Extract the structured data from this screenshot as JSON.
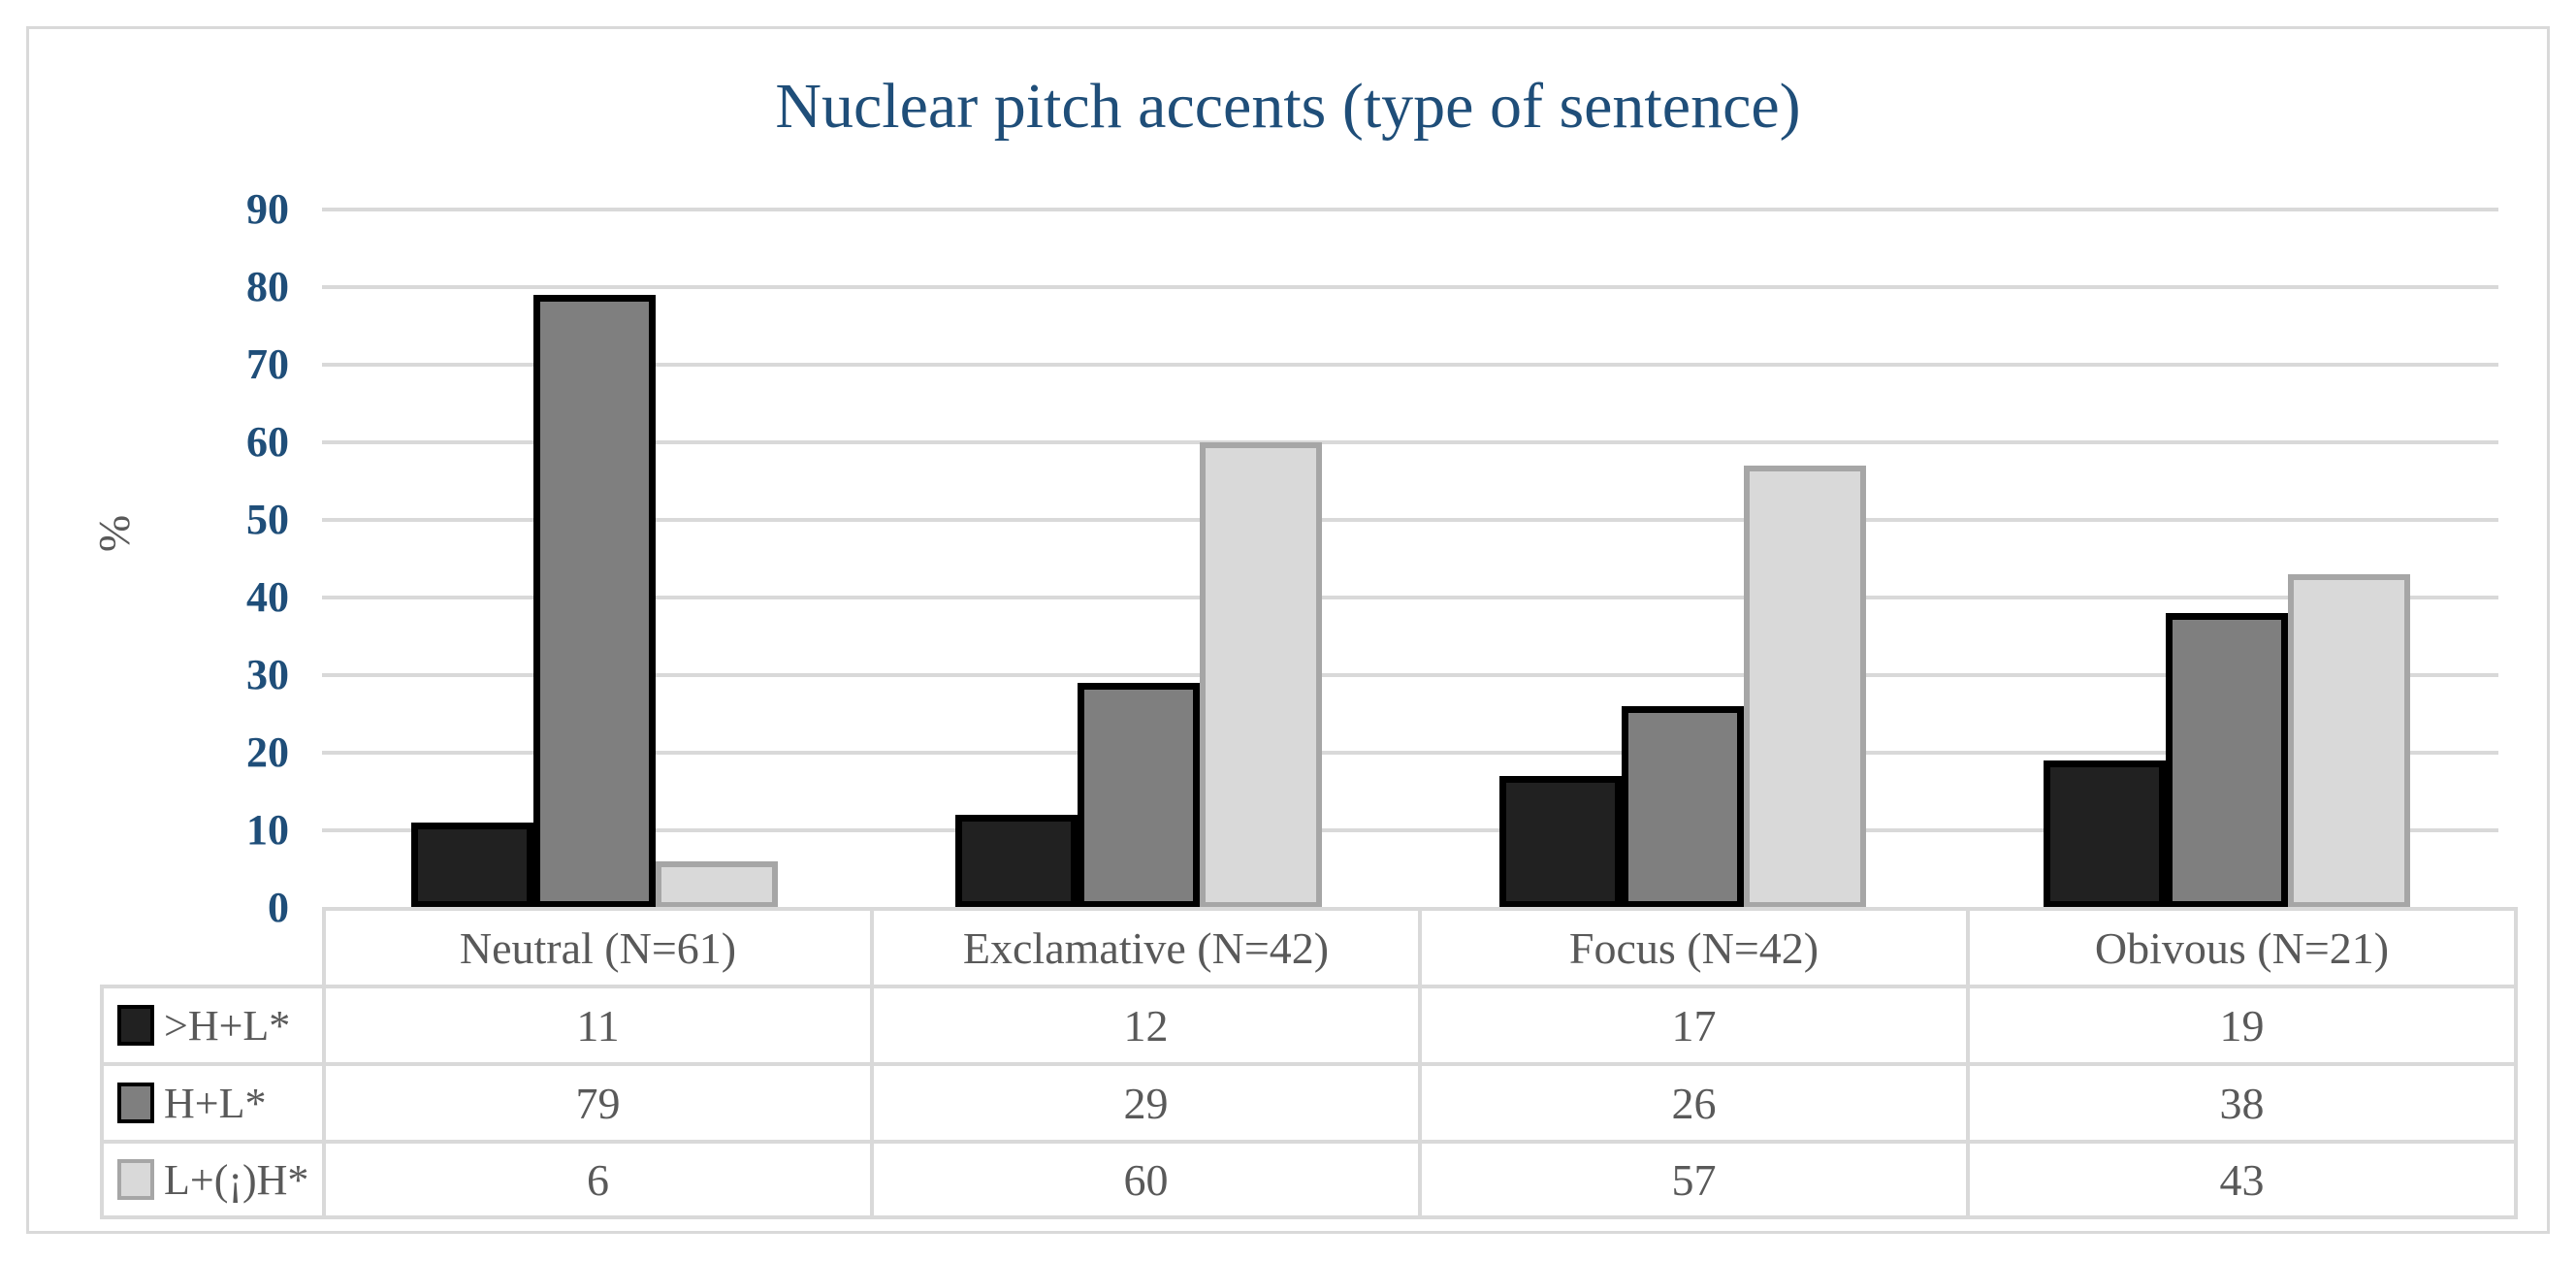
{
  "chart_data": {
    "type": "bar",
    "title": "Nuclear pitch accents (type of sentence)",
    "xlabel": "",
    "ylabel": "%",
    "ylim": [
      0,
      90
    ],
    "yticks": [
      90,
      80,
      70,
      60,
      50,
      40,
      30,
      20,
      10,
      0
    ],
    "grid": true,
    "legend_position": "table-left",
    "categories": [
      "Neutral (N=61)",
      "Exclamative (N=42)",
      "Focus (N=42)",
      "Obivous (N=21)"
    ],
    "series": [
      {
        "name": ">H+L*",
        "values": [
          11,
          12,
          17,
          19
        ],
        "fill": "#212121",
        "border": "#000000"
      },
      {
        "name": "H+L*",
        "values": [
          79,
          29,
          26,
          38
        ],
        "fill": "#7f7f7f",
        "border": "#000000"
      },
      {
        "name": "L+(¡)H*",
        "values": [
          6,
          60,
          57,
          43
        ],
        "fill": "#d9d9d9",
        "border": "#a6a6a6"
      }
    ]
  },
  "colors": {
    "title_text": "#1f4e79",
    "tick_text": "#1f4e79",
    "table_text": "#595959",
    "gridline": "#d9d9d9",
    "frame_border": "#d9d9d9",
    "background": "#ffffff"
  }
}
